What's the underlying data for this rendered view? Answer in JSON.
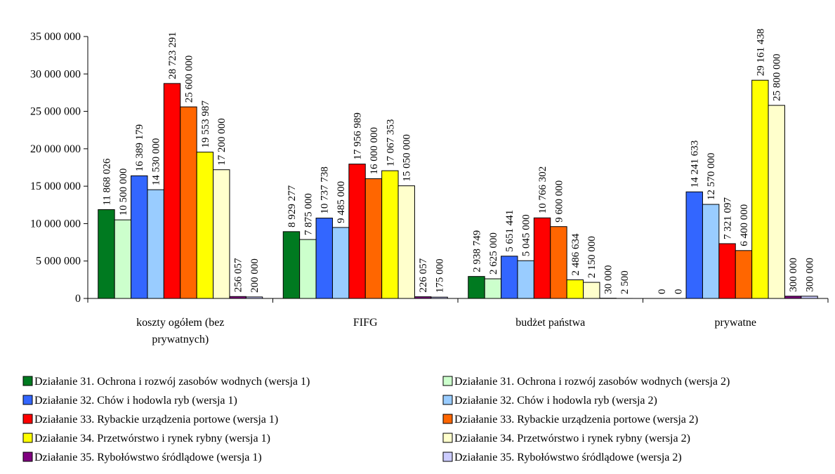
{
  "chart_data": {
    "type": "bar",
    "categories": [
      [
        "koszty ogółem (bez",
        "prywatnych)"
      ],
      [
        "FIFG"
      ],
      [
        "budżet państwa"
      ],
      [
        "prywatne"
      ]
    ],
    "ylim": [
      0,
      35000000
    ],
    "yticks": [
      0,
      5000000,
      10000000,
      15000000,
      20000000,
      25000000,
      30000000,
      35000000
    ],
    "ytick_labels": [
      "0",
      "5 000 000",
      "10 000 000",
      "15 000 000",
      "20 000 000",
      "25 000 000",
      "30 000 000",
      "35 000 000"
    ],
    "grid": false,
    "legend_position": "bottom",
    "series": [
      {
        "name": "Działanie 31. Ochrona i rozwój zasobów wodnych (wersja 1)",
        "color": "#007A20",
        "values": [
          11868026,
          8929277,
          2938749,
          0
        ],
        "labels": [
          "11 868 026",
          "8 929 277",
          "2 938 749",
          "0"
        ]
      },
      {
        "name": "Działanie 31. Ochrona i rozwój zasobów wodnych (wersja 2)",
        "color": "#CCFFCC",
        "values": [
          10500000,
          7875000,
          2625000,
          0
        ],
        "labels": [
          "10 500 000",
          "7 875 000",
          "2 625 000",
          "0"
        ]
      },
      {
        "name": "Działanie 32. Chów i hodowla ryb (wersja 1)",
        "color": "#3366FF",
        "values": [
          16389179,
          10737738,
          5651441,
          14241633
        ],
        "labels": [
          "16 389 179",
          "10 737 738",
          "5 651 441",
          "14 241 633"
        ]
      },
      {
        "name": "Działanie 32. Chów i hodowla ryb (wersja 2)",
        "color": "#99CCFF",
        "values": [
          14530000,
          9485000,
          5045000,
          12570000
        ],
        "labels": [
          "14 530 000",
          "9 485 000",
          "5 045 000",
          "12 570 000"
        ]
      },
      {
        "name": "Działanie 33. Rybackie urządzenia portowe (wersja 1)",
        "color": "#FF0000",
        "values": [
          28723291,
          17956989,
          10766302,
          7321097
        ],
        "labels": [
          "28 723 291",
          "17 956 989",
          "10 766 302",
          "7 321 097"
        ]
      },
      {
        "name": "Działanie 33. Rybackie urządzenia portowe (wersja 2)",
        "color": "#FF6600",
        "values": [
          25600000,
          16000000,
          9600000,
          6400000
        ],
        "labels": [
          "25 600 000",
          "16 000 000",
          "9 600 000",
          "6 400 000"
        ]
      },
      {
        "name": "Działanie 34. Przetwórstwo i rynek rybny (wersja 1)",
        "color": "#FFFF00",
        "values": [
          19553987,
          17067353,
          2486634,
          29161438
        ],
        "labels": [
          "19 553 987",
          "17 067 353",
          "2 486 634",
          "29 161 438"
        ]
      },
      {
        "name": "Działanie 34. Przetwórstwo i rynek rybny (wersja 2)",
        "color": "#FFFFCC",
        "values": [
          17200000,
          15050000,
          2150000,
          25800000
        ],
        "labels": [
          "17 200 000",
          "15 050 000",
          "2 150 000",
          "25 800 000"
        ]
      },
      {
        "name": "Działanie 35. Rybołówstwo śródlądowe (wersja 1)",
        "color": "#800080",
        "values": [
          256057,
          226057,
          30000,
          300000
        ],
        "labels": [
          "256 057",
          "226 057",
          "30 000",
          "300 000"
        ]
      },
      {
        "name": "Działanie 35. Rybołówstwo śródlądowe (wersja 2)",
        "color": "#CCCCFF",
        "values": [
          200000,
          175000,
          2500,
          300000
        ],
        "labels": [
          "200 000",
          "175 000",
          "2 500",
          "300 000"
        ]
      }
    ]
  }
}
